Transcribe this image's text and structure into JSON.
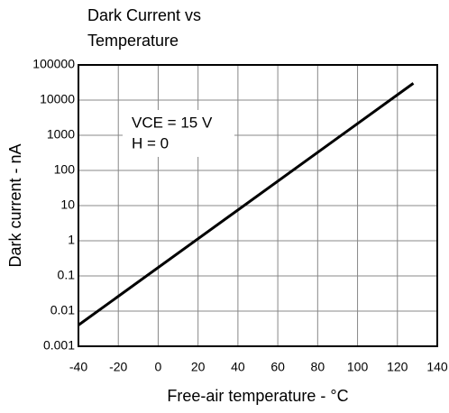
{
  "chart_data": {
    "type": "line",
    "title": [
      "Dark Current vs",
      "Temperature"
    ],
    "x_label": "Free-air temperature - °C",
    "y_label": "Dark current - nA",
    "annotations": [
      "VCE = 15 V",
      "H = 0"
    ],
    "x": [
      -40,
      128
    ],
    "series": [
      {
        "name": "Dark current",
        "color": "#000000",
        "values": [
          0.004,
          30000
        ]
      }
    ],
    "xlim": [
      -40,
      140
    ],
    "xticks": [
      -40,
      -20,
      0,
      20,
      40,
      60,
      80,
      100,
      120,
      140
    ],
    "ylim": [
      0.001,
      100000
    ],
    "yticks": [
      0.001,
      0.01,
      0.1,
      1,
      10,
      100,
      1000,
      10000,
      100000
    ],
    "y_scale": "log",
    "grid": true
  }
}
